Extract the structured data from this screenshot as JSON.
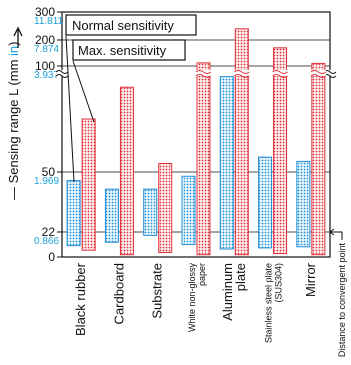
{
  "chart_data": {
    "type": "bar",
    "title": "",
    "ylabel": {
      "prefix": "— Sensing range L (mm ",
      "unit_alt": "in",
      "suffix": ")"
    },
    "y_ticks": [
      {
        "mm": "300",
        "in": "11.811",
        "value": 300
      },
      {
        "mm": "200",
        "in": "7.874",
        "value": 200
      },
      {
        "mm": "100",
        "in": "3.937",
        "value": 100
      },
      {
        "mm": "50",
        "in": "1.969",
        "value": 50
      },
      {
        "mm": "22",
        "in": "0.866",
        "value": 22
      },
      {
        "mm": "0",
        "in": "",
        "value": 0
      }
    ],
    "axis_note": "Distance to convergent point",
    "categories": [
      {
        "label": "Black rubber",
        "small": false
      },
      {
        "label": "Cardboard",
        "small": false
      },
      {
        "label": "Substrate",
        "small": false
      },
      {
        "label": "White non-glossy paper",
        "lines": [
          "White non-glossy",
          "paper"
        ],
        "small": true
      },
      {
        "label": "Aluminum plate",
        "lines": [
          "Aluminum",
          "plate"
        ],
        "small": false
      },
      {
        "label": "Stainless steel plate (SUS304)",
        "lines": [
          "Stainless steel plate",
          "(SUS304)"
        ],
        "small": true
      },
      {
        "label": "Mirror",
        "small": false
      }
    ],
    "series": [
      {
        "name": "Normal sensitivity",
        "color": "#1f8fd8",
        "ranges": [
          [
            10,
            46
          ],
          [
            13,
            42
          ],
          [
            19,
            42
          ],
          [
            11,
            48
          ],
          [
            7,
            95
          ],
          [
            8,
            57
          ],
          [
            9,
            55
          ]
        ]
      },
      {
        "name": "Max. sensitivity",
        "color": "#e0303a",
        "ranges": [
          [
            6,
            75
          ],
          [
            2,
            90
          ],
          [
            4,
            54
          ],
          [
            2,
            112
          ],
          [
            2,
            240
          ],
          [
            3,
            170
          ],
          [
            2,
            110
          ]
        ]
      }
    ]
  }
}
